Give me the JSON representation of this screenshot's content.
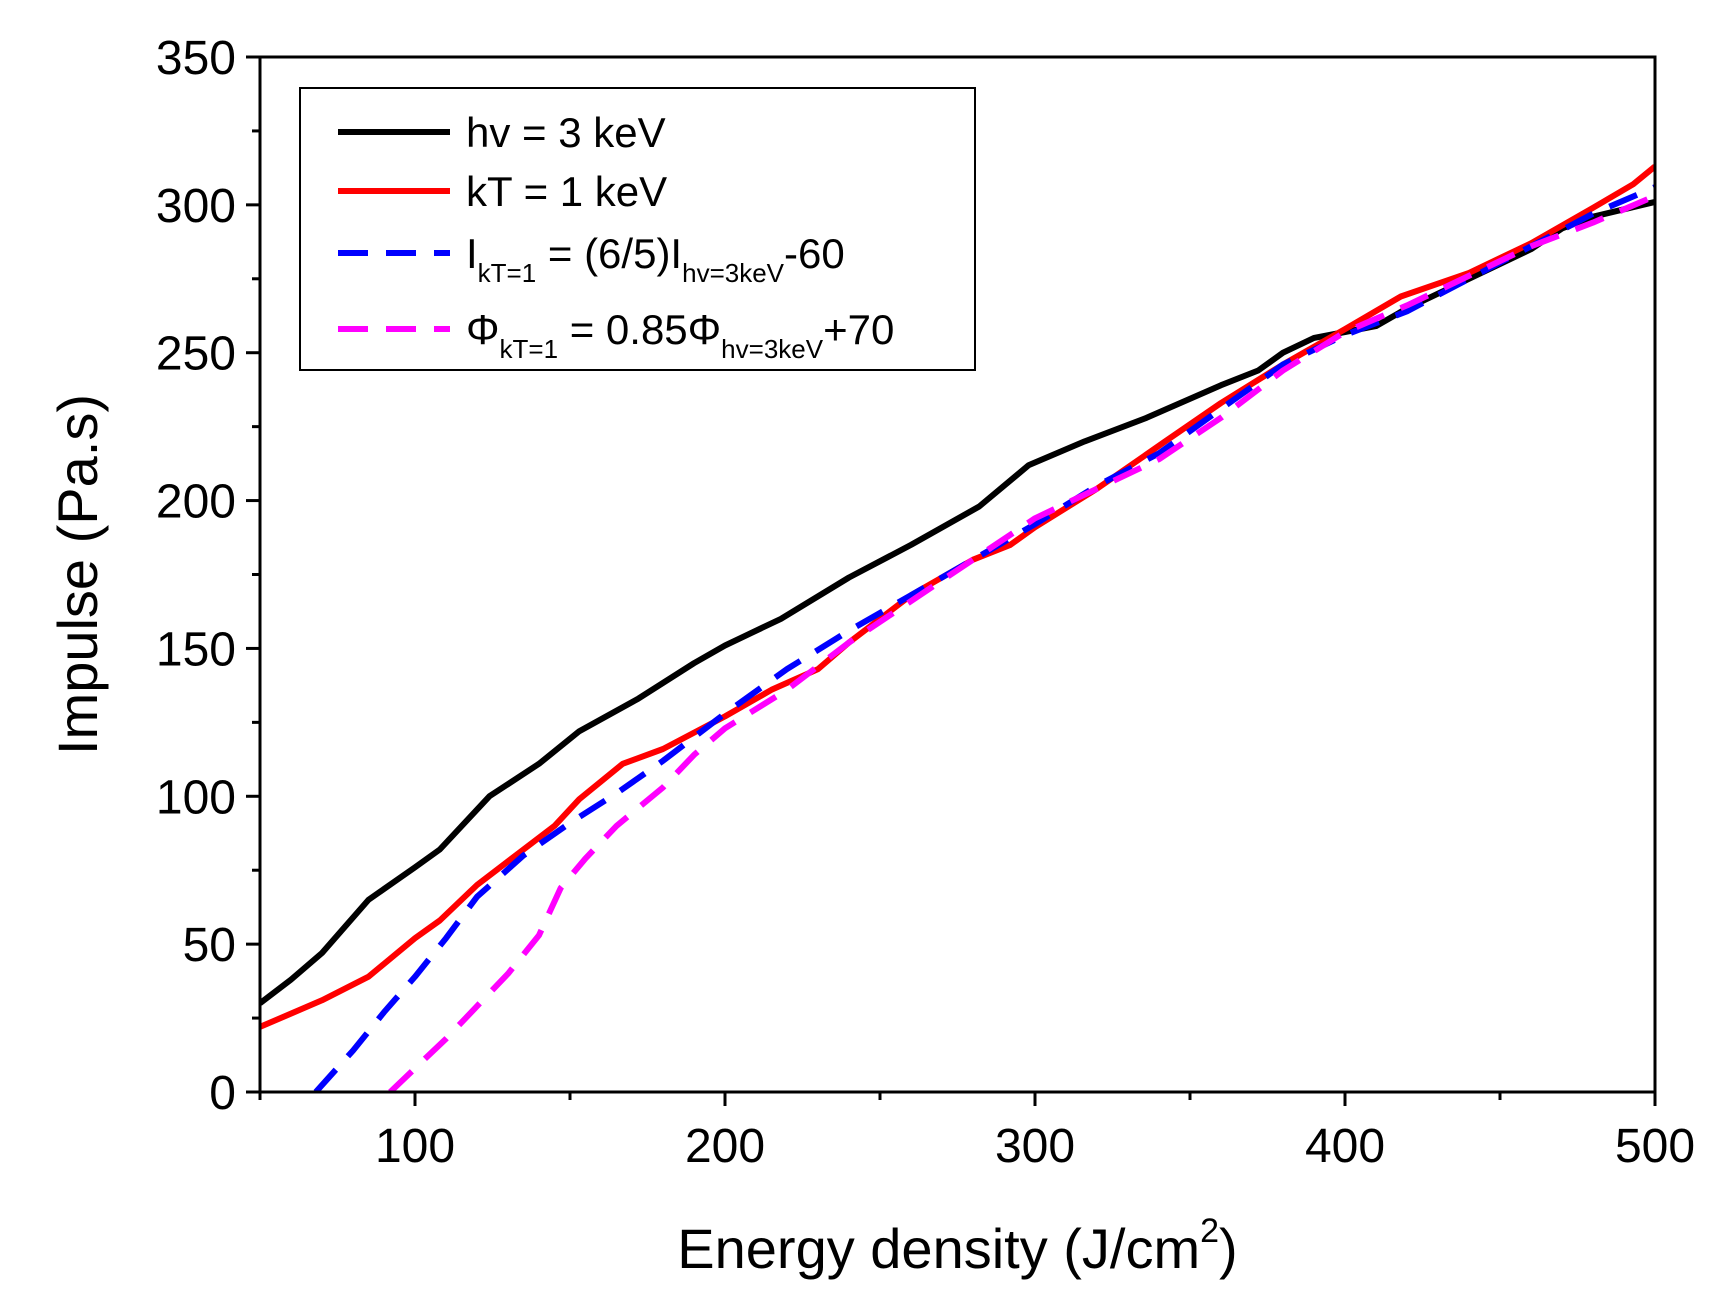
{
  "chart_data": {
    "type": "line",
    "title": "",
    "xlabel": "Energy density (J/cm",
    "xlabel_sup": "2",
    "xlabel_close": ")",
    "ylabel": "Impulse (Pa.s)",
    "xlim": [
      50,
      500
    ],
    "ylim": [
      0,
      350
    ],
    "x_ticks": [
      100,
      200,
      300,
      400,
      500
    ],
    "x_tick_labels": [
      "100",
      "200",
      "300",
      "400",
      "500"
    ],
    "x_minor_step": 50,
    "y_ticks": [
      0,
      50,
      100,
      150,
      200,
      250,
      300,
      350
    ],
    "y_tick_labels": [
      "0",
      "50",
      "100",
      "150",
      "200",
      "250",
      "300",
      "350"
    ],
    "y_minor_step": 25,
    "grid": false,
    "legend_position": "top-left",
    "series": [
      {
        "name": "hv = 3 keV",
        "color": "#000000",
        "dash": "solid",
        "x": [
          50,
          60,
          70,
          85,
          100,
          108,
          124,
          140,
          153,
          172,
          190,
          200,
          218,
          240,
          260,
          282,
          298,
          316,
          336,
          360,
          372,
          380,
          390,
          400,
          410,
          420,
          440,
          460,
          470,
          480,
          500
        ],
        "y": [
          30,
          38,
          47,
          65,
          76,
          82,
          100,
          111,
          122,
          133,
          145,
          151,
          160,
          174,
          185,
          198,
          212,
          220,
          228,
          239,
          244,
          250,
          255,
          257,
          259,
          265,
          275,
          285,
          292,
          296,
          301
        ]
      },
      {
        "name": "kT = 1 keV",
        "color": "#ff0000",
        "dash": "solid",
        "x": [
          50,
          70,
          85,
          100,
          108,
          120,
          135,
          145,
          153,
          167,
          180,
          200,
          215,
          230,
          240,
          260,
          280,
          292,
          300,
          320,
          342,
          360,
          380,
          400,
          418,
          440,
          460,
          480,
          493,
          500
        ],
        "y": [
          22,
          31,
          39,
          52,
          58,
          70,
          82,
          90,
          99,
          111,
          116,
          127,
          136,
          143,
          152,
          168,
          180,
          185,
          191,
          204,
          220,
          233,
          246,
          258,
          269,
          277,
          287,
          299,
          307,
          313
        ]
      },
      {
        "name": "I_kT=1 = (6/5)I_hv=3keV-60",
        "label_main": "I",
        "label_sub1": "kT=1",
        "label_mid": " =  (6/5)I",
        "label_sub2": "hv=3keV",
        "label_end": "-60",
        "color": "#0000ff",
        "dash": "dashed",
        "x": [
          68,
          80,
          90,
          100,
          110,
          120,
          135,
          150,
          165,
          180,
          200,
          220,
          240,
          260,
          280,
          300,
          320,
          340,
          360,
          380,
          400,
          420,
          440,
          460,
          480,
          500
        ],
        "y": [
          0,
          14,
          27,
          39,
          52,
          66,
          80,
          91,
          101,
          112,
          128,
          143,
          156,
          168,
          180,
          192,
          205,
          216,
          231,
          246,
          256,
          264,
          275,
          286,
          297,
          306
        ]
      },
      {
        "name": "Φ_kT=1 = 0.85Φ_hv=3keV+70",
        "label_main": "Φ",
        "label_sub1": "kT=1",
        "label_mid": " =  0.85Φ",
        "label_sub2": "hv=3keV",
        "label_end": "+70",
        "color": "#ff00ff",
        "dash": "dashed",
        "x": [
          92,
          100,
          110,
          120,
          130,
          140,
          147,
          155,
          165,
          180,
          190,
          200,
          220,
          240,
          260,
          280,
          300,
          320,
          340,
          360,
          380,
          400,
          420,
          440,
          460,
          480,
          500
        ],
        "y": [
          0,
          8,
          18,
          29,
          40,
          53,
          69,
          79,
          90,
          103,
          114,
          123,
          136,
          152,
          166,
          180,
          194,
          204,
          214,
          228,
          244,
          257,
          266,
          276,
          286,
          294,
          303
        ]
      }
    ]
  }
}
